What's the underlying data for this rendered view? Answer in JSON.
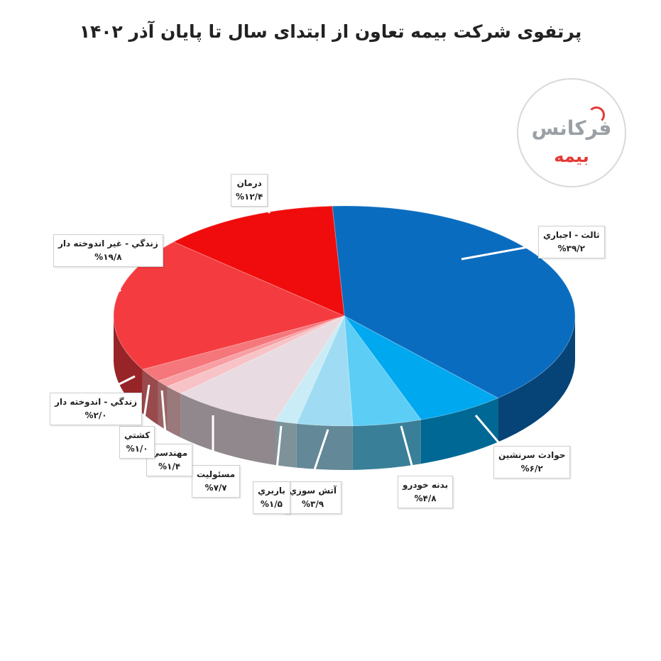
{
  "title": "پرتفوی شرکت بیمه تعاون از ابتدای سال تا پایان آذر ۱۴۰۲",
  "logo": {
    "line1": "فرکانس",
    "line2": "بیمه"
  },
  "chart_data": {
    "type": "pie",
    "style": "3d",
    "title": "پرتفوی شرکت بیمه تعاون از ابتدای سال تا پایان آذر ۱۴۰۲",
    "unit": "%",
    "start": "top, clockwise",
    "slices": [
      {
        "name": "ثالث - اجباري",
        "value": 39.2,
        "label": "%۳۹/۲",
        "color": "#0a6cbf"
      },
      {
        "name": "حوادث سرنشين",
        "value": 6.2,
        "label": "%۶/۲",
        "color": "#00a8ef"
      },
      {
        "name": "بدنه خودرو",
        "value": 4.8,
        "label": "%۴/۸",
        "color": "#5ccdf5"
      },
      {
        "name": "آتش سوزي",
        "value": 3.9,
        "label": "%۳/۹",
        "color": "#9fdcf3"
      },
      {
        "name": "باربري",
        "value": 1.5,
        "label": "%۱/۵",
        "color": "#c9ecf7"
      },
      {
        "name": "مسئوليت",
        "value": 7.7,
        "label": "%۷/۷",
        "color": "#e8dce2"
      },
      {
        "name": "مهندسي",
        "value": 1.4,
        "label": "%۱/۴",
        "color": "#f7c3c6"
      },
      {
        "name": "كشتي",
        "value": 1.0,
        "label": "%۱/۰",
        "color": "#f89fa3"
      },
      {
        "name": "زندگي - اندوخته دار",
        "value": 2.0,
        "label": "%۲/۰",
        "color": "#f5777b"
      },
      {
        "name": "زندگي - غير اندوخته دار",
        "value": 19.8,
        "label": "%۱۹/۸",
        "color": "#f43c40"
      },
      {
        "name": "درمان",
        "value": 12.4,
        "label": "%۱۲/۴",
        "color": "#f00c0c"
      }
    ]
  }
}
